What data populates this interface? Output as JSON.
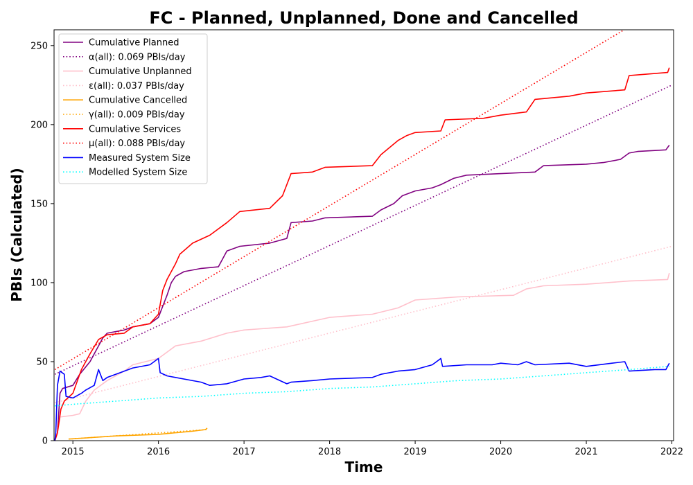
{
  "chart_data": {
    "type": "line",
    "title": "FC - Planned, Unplanned, Done  and Cancelled",
    "xlabel": "Time",
    "ylabel": "PBIs (Calculated)",
    "xlim": [
      2014.78,
      2022.02
    ],
    "ylim": [
      0,
      260
    ],
    "x_ticks": [
      2015,
      2016,
      2017,
      2018,
      2019,
      2020,
      2021,
      2022
    ],
    "y_ticks": [
      0,
      50,
      100,
      150,
      200,
      250
    ],
    "grid": false,
    "legend_position": "top-left",
    "series": [
      {
        "name": "Cumulative Planned",
        "color": "#800080",
        "style": "solid",
        "x": [
          2014.79,
          2014.82,
          2014.85,
          2014.88,
          2015.0,
          2015.08,
          2015.2,
          2015.3,
          2015.35,
          2015.4,
          2015.6,
          2015.7,
          2015.9,
          2016.0,
          2016.05,
          2016.1,
          2016.15,
          2016.2,
          2016.3,
          2016.5,
          2016.7,
          2016.8,
          2016.95,
          2017.3,
          2017.5,
          2017.55,
          2017.8,
          2017.95,
          2018.5,
          2018.6,
          2018.75,
          2018.85,
          2019.0,
          2019.2,
          2019.3,
          2019.45,
          2019.6,
          2020.0,
          2020.4,
          2020.5,
          2021.0,
          2021.2,
          2021.4,
          2021.5,
          2021.6,
          2021.93,
          2021.97
        ],
        "y": [
          0,
          5,
          30,
          33,
          35,
          42,
          50,
          60,
          65,
          68,
          70,
          72,
          74,
          78,
          85,
          92,
          100,
          104,
          107,
          109,
          110,
          120,
          123,
          125,
          128,
          138,
          139,
          141,
          142,
          146,
          150,
          155,
          158,
          160,
          162,
          166,
          168,
          169,
          170,
          174,
          175,
          176,
          178,
          182,
          183,
          184,
          187
        ]
      },
      {
        "name": "α(all): 0.069 PBIs/day",
        "color": "#800080",
        "style": "dotted",
        "x": [
          2014.79,
          2022.0
        ],
        "y": [
          42,
          225
        ]
      },
      {
        "name": "Cumulative Unplanned",
        "color": "#ffc0cb",
        "style": "solid",
        "x": [
          2014.79,
          2014.82,
          2014.85,
          2015.0,
          2015.08,
          2015.15,
          2015.25,
          2015.4,
          2015.6,
          2015.7,
          2016.0,
          2016.2,
          2016.5,
          2016.8,
          2017.0,
          2017.5,
          2018.0,
          2018.5,
          2018.8,
          2019.0,
          2019.5,
          2020.15,
          2020.3,
          2020.5,
          2021.0,
          2021.5,
          2021.95,
          2021.97
        ],
        "y": [
          0,
          5,
          15,
          16,
          17,
          25,
          32,
          38,
          44,
          48,
          52,
          60,
          63,
          68,
          70,
          72,
          78,
          80,
          84,
          89,
          91,
          92,
          96,
          98,
          99,
          101,
          102,
          106
        ]
      },
      {
        "name": "ε(all): 0.037 PBIs/day",
        "color": "#ffc0cb",
        "style": "dotted",
        "x": [
          2014.79,
          2022.0
        ],
        "y": [
          24,
          123
        ]
      },
      {
        "name": "Cumulative Cancelled",
        "color": "#ffa500",
        "style": "solid",
        "x": [
          2014.95,
          2015.5,
          2016.0,
          2016.2,
          2016.4,
          2016.55,
          2016.57
        ],
        "y": [
          1,
          3,
          4,
          5,
          6,
          7,
          8
        ]
      },
      {
        "name": "γ(all): 0.009 PBIs/day",
        "color": "#ffa500",
        "style": "dotted",
        "x": [
          2014.95,
          2016.57
        ],
        "y": [
          1,
          7
        ]
      },
      {
        "name": "Cumulative Services",
        "color": "#ff0000",
        "style": "solid",
        "x": [
          2014.79,
          2014.82,
          2014.86,
          2014.9,
          2015.0,
          2015.1,
          2015.2,
          2015.3,
          2015.4,
          2015.6,
          2015.7,
          2015.9,
          2016.0,
          2016.05,
          2016.1,
          2016.2,
          2016.25,
          2016.4,
          2016.6,
          2016.8,
          2016.95,
          2017.3,
          2017.45,
          2017.55,
          2017.8,
          2017.95,
          2018.5,
          2018.6,
          2018.8,
          2018.9,
          2019.0,
          2019.3,
          2019.35,
          2019.8,
          2020.0,
          2020.3,
          2020.4,
          2020.8,
          2021.0,
          2021.45,
          2021.5,
          2021.95,
          2021.97
        ],
        "y": [
          0,
          5,
          20,
          25,
          30,
          45,
          55,
          64,
          67,
          68,
          72,
          74,
          80,
          95,
          102,
          112,
          118,
          125,
          130,
          138,
          145,
          147,
          155,
          169,
          170,
          173,
          174,
          181,
          190,
          193,
          195,
          196,
          203,
          204,
          206,
          208,
          216,
          218,
          220,
          222,
          231,
          233,
          236
        ]
      },
      {
        "name": "μ(all): 0.088 PBIs/day",
        "color": "#ff0000",
        "style": "dotted",
        "x": [
          2014.79,
          2022.0
        ],
        "y": [
          45,
          278
        ]
      },
      {
        "name": "Measured System Size",
        "color": "#0000ff",
        "style": "solid",
        "x": [
          2014.79,
          2014.8,
          2014.82,
          2014.85,
          2014.9,
          2014.92,
          2015.0,
          2015.1,
          2015.15,
          2015.25,
          2015.3,
          2015.35,
          2015.4,
          2015.5,
          2015.7,
          2015.9,
          2016.0,
          2016.02,
          2016.1,
          2016.2,
          2016.5,
          2016.6,
          2016.8,
          2017.0,
          2017.2,
          2017.3,
          2017.5,
          2017.55,
          2017.8,
          2018.0,
          2018.5,
          2018.6,
          2018.8,
          2019.0,
          2019.2,
          2019.3,
          2019.32,
          2019.6,
          2019.9,
          2020.0,
          2020.2,
          2020.3,
          2020.4,
          2020.8,
          2021.0,
          2021.3,
          2021.45,
          2021.5,
          2021.8,
          2021.93,
          2021.97
        ],
        "y": [
          0,
          5,
          35,
          44,
          42,
          28,
          27,
          30,
          32,
          35,
          45,
          38,
          40,
          42,
          46,
          48,
          52,
          43,
          41,
          40,
          37,
          35,
          36,
          39,
          40,
          41,
          36,
          37,
          38,
          39,
          40,
          42,
          44,
          45,
          48,
          52,
          47,
          48,
          48,
          49,
          48,
          50,
          48,
          49,
          47,
          49,
          50,
          44,
          45,
          45,
          49
        ]
      },
      {
        "name": "Modelled System Size",
        "color": "#00ffff",
        "style": "dotted",
        "x": [
          2014.79,
          2015.0,
          2015.5,
          2016.0,
          2016.5,
          2017.0,
          2017.5,
          2018.0,
          2018.5,
          2019.0,
          2019.5,
          2020.0,
          2020.5,
          2021.0,
          2021.5,
          2021.97
        ],
        "y": [
          22,
          23,
          25,
          27,
          28,
          30,
          31,
          33,
          34,
          36,
          38,
          39,
          41,
          43,
          45,
          47
        ]
      }
    ]
  }
}
